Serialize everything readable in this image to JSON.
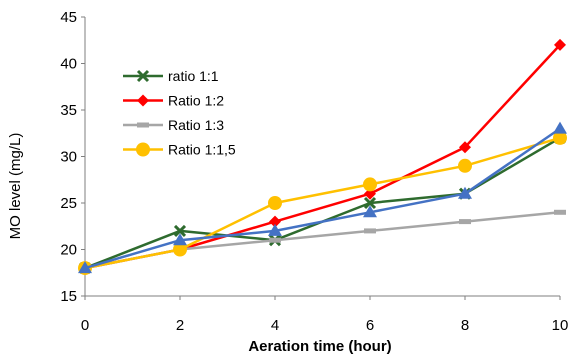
{
  "chart_data": {
    "type": "line",
    "title": "",
    "xlabel": "Aeration time (hour)",
    "ylabel": "MO level (mg/L)",
    "xlim": [
      0,
      10
    ],
    "ylim": [
      15,
      45
    ],
    "x_ticks": [
      "0",
      "2",
      "4",
      "6",
      "8",
      "10"
    ],
    "y_ticks": [
      "15",
      "20",
      "25",
      "30",
      "35",
      "40",
      "45"
    ],
    "grid": false,
    "legend_position": "top-left",
    "x": [
      0,
      2,
      4,
      6,
      8,
      10
    ],
    "series": [
      {
        "name": "ratio 1:1",
        "color": "#2e6b2e",
        "marker": "x",
        "values": [
          18,
          22,
          21,
          25,
          26,
          32
        ]
      },
      {
        "name": "Ratio 1:2",
        "color": "#ff0000",
        "marker": "diamond",
        "values": [
          18,
          20,
          23,
          26,
          31,
          42
        ]
      },
      {
        "name": "Ratio 1:3",
        "color": "#a6a6a6",
        "marker": "dash",
        "values": [
          18,
          20,
          21,
          22,
          23,
          24
        ]
      },
      {
        "name": "Ratio 1:1,5",
        "color": "#ffc000",
        "marker": "circle",
        "values": [
          18,
          20,
          25,
          27,
          29,
          32
        ]
      },
      {
        "name": "",
        "color": "#4472c4",
        "marker": "triangle",
        "values": [
          18,
          21,
          22,
          24,
          26,
          33
        ]
      }
    ]
  }
}
